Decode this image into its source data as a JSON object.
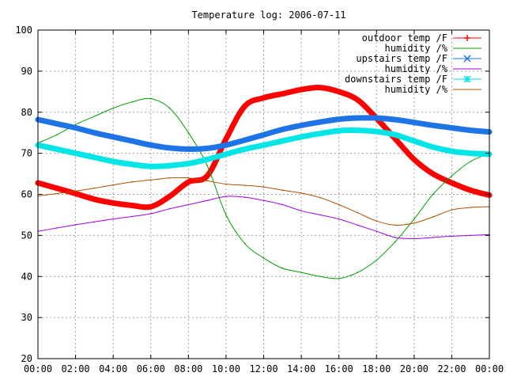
{
  "chart_data": {
    "type": "line",
    "title": "Temperature log: 2006-07-11",
    "xlabel": "",
    "ylabel": "",
    "xlim": [
      0,
      24
    ],
    "ylim": [
      20,
      100
    ],
    "x_tick_labels": [
      "00:00",
      "02:00",
      "04:00",
      "06:00",
      "08:00",
      "10:00",
      "12:00",
      "14:00",
      "16:00",
      "18:00",
      "20:00",
      "22:00",
      "00:00"
    ],
    "y_tick_labels": [
      "20",
      "30",
      "40",
      "50",
      "60",
      "70",
      "80",
      "90",
      "100"
    ],
    "grid": true,
    "legend_position": "top-right",
    "x": [
      0,
      1,
      2,
      3,
      4,
      5,
      6,
      7,
      8,
      9,
      10,
      11,
      12,
      13,
      14,
      15,
      16,
      17,
      18,
      19,
      20,
      21,
      22,
      23,
      24
    ],
    "series": [
      {
        "name": "outdoor temp /F",
        "color": "#ff0000",
        "marker": "plus",
        "values": [
          62.8,
          61.5,
          60.2,
          58.8,
          57.9,
          57.3,
          57.0,
          59.5,
          63.0,
          64.5,
          73.5,
          81.5,
          83.5,
          84.5,
          85.5,
          86.0,
          85.0,
          83.0,
          78.5,
          73.5,
          68.5,
          65.0,
          62.8,
          61.0,
          59.8
        ]
      },
      {
        "name": "humidity /%",
        "color": "#00a000",
        "marker": "none",
        "values": [
          72.5,
          74.5,
          77.0,
          79.0,
          81.0,
          82.5,
          83.3,
          81.0,
          75.0,
          67.0,
          55.0,
          48.0,
          44.5,
          42.0,
          41.0,
          40.0,
          39.5,
          41.0,
          44.0,
          48.5,
          54.0,
          60.0,
          64.5,
          68.0,
          70.0
        ]
      },
      {
        "name": "upstairs temp /F",
        "color": "#1e74e6",
        "marker": "x",
        "values": [
          78.2,
          77.2,
          76.2,
          75.0,
          74.0,
          73.0,
          72.0,
          71.3,
          71.0,
          71.2,
          72.0,
          73.2,
          74.5,
          75.8,
          76.8,
          77.6,
          78.3,
          78.6,
          78.6,
          78.2,
          77.5,
          76.8,
          76.2,
          75.6,
          75.2
        ]
      },
      {
        "name": "humidity /%",
        "color": "#a000e0",
        "marker": "none",
        "values": [
          51.0,
          51.8,
          52.6,
          53.3,
          54.0,
          54.6,
          55.3,
          56.5,
          57.5,
          58.5,
          59.5,
          59.3,
          58.5,
          57.5,
          56.0,
          55.0,
          54.0,
          52.5,
          51.0,
          49.5,
          49.2,
          49.5,
          49.8,
          50.0,
          50.2
        ]
      },
      {
        "name": "downstairs temp /F",
        "color": "#00e5e5",
        "marker": "star",
        "values": [
          72.0,
          71.0,
          70.0,
          69.0,
          68.0,
          67.3,
          66.8,
          67.0,
          67.5,
          68.5,
          69.8,
          71.0,
          72.0,
          73.0,
          74.0,
          74.8,
          75.5,
          75.6,
          75.3,
          74.5,
          73.0,
          71.5,
          70.5,
          70.0,
          69.8
        ]
      },
      {
        "name": "humidity /%",
        "color": "#b05000",
        "marker": "none",
        "values": [
          59.6,
          60.2,
          60.8,
          61.5,
          62.3,
          63.0,
          63.5,
          64.0,
          64.0,
          63.3,
          62.5,
          62.2,
          61.8,
          61.0,
          60.3,
          59.2,
          57.5,
          55.5,
          53.5,
          52.5,
          53.0,
          54.5,
          56.2,
          56.8,
          57.0
        ]
      }
    ]
  }
}
